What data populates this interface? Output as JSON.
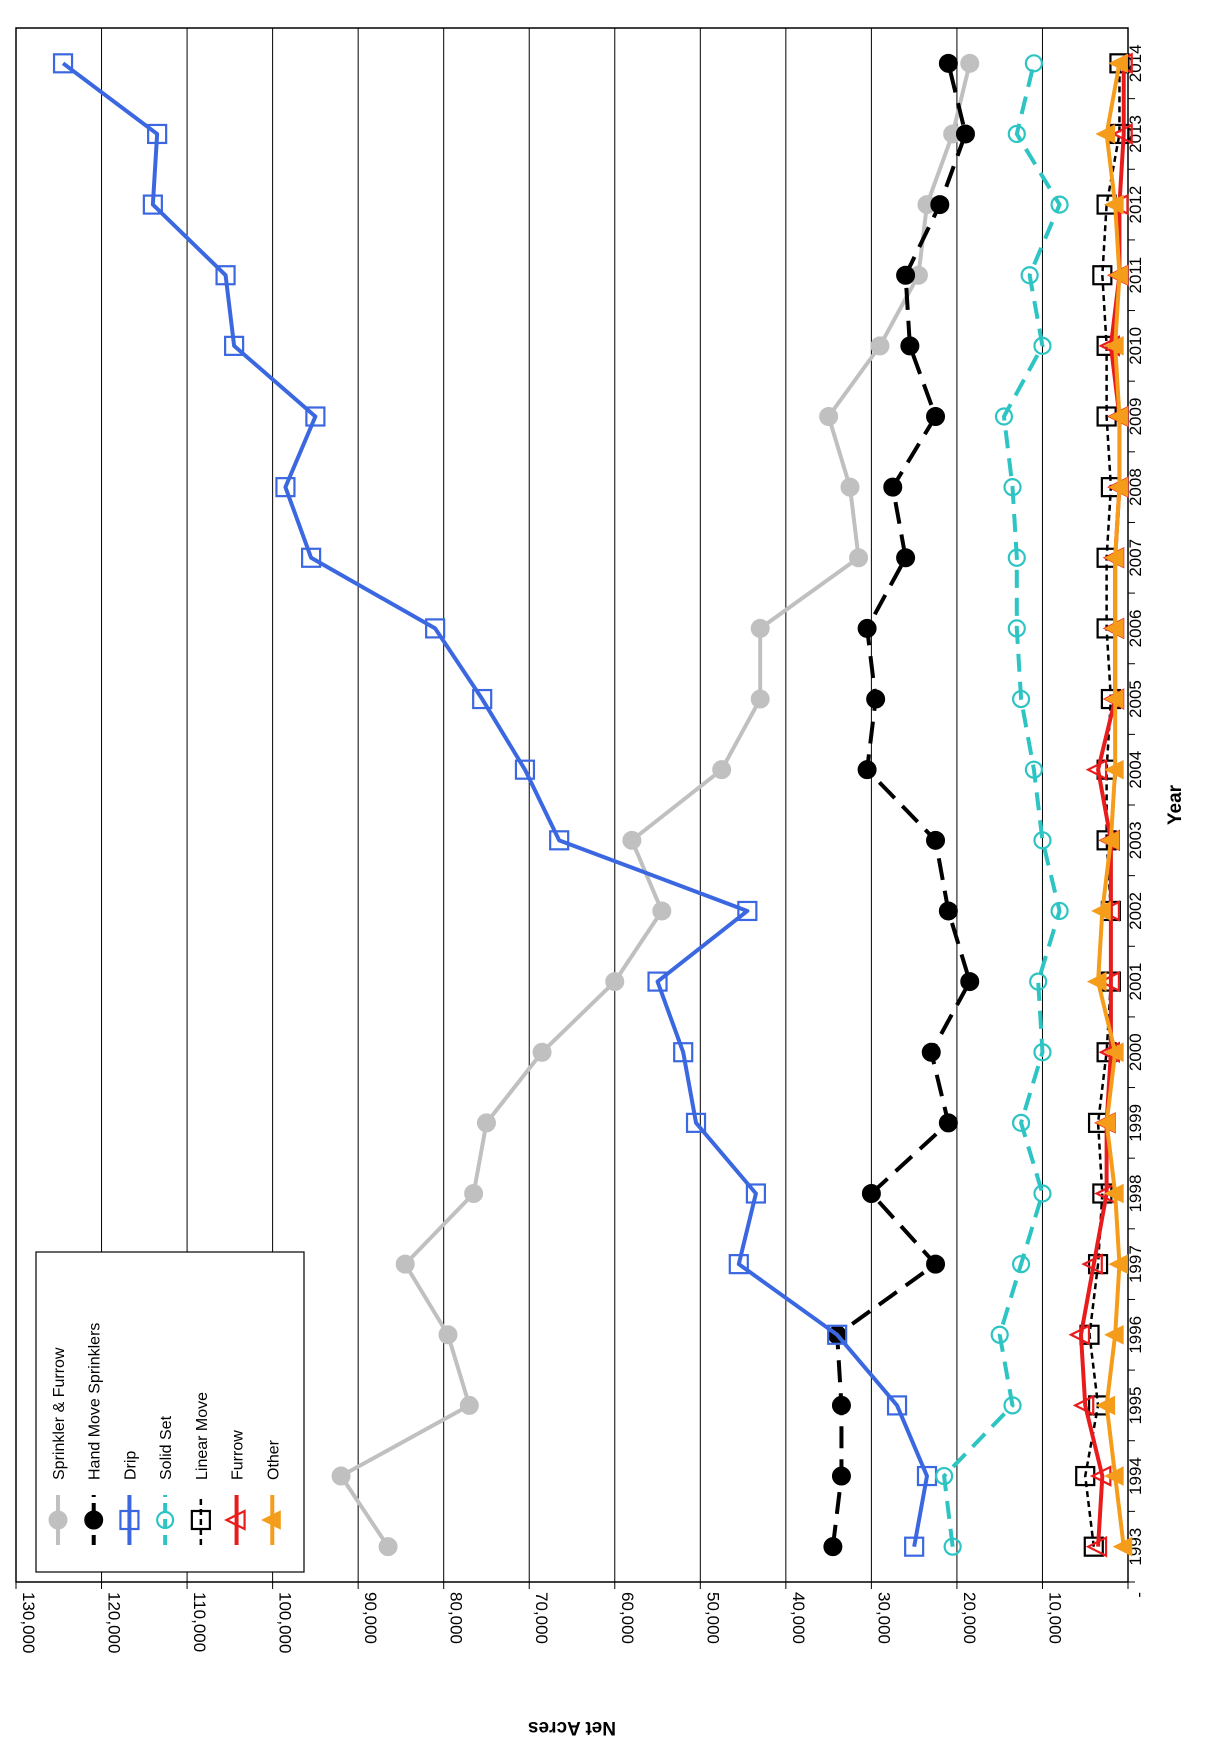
{
  "chart_data": {
    "type": "line",
    "xlabel": "Year",
    "ylabel": "Net Acres",
    "ylim": [
      0,
      130000
    ],
    "yticks": [
      0,
      10000,
      20000,
      30000,
      40000,
      50000,
      60000,
      70000,
      80000,
      90000,
      100000,
      110000,
      120000,
      130000
    ],
    "ytick_labels": [
      "-",
      "10,000",
      "20,000",
      "30,000",
      "40,000",
      "50,000",
      "60,000",
      "70,000",
      "80,000",
      "90,000",
      "100,000",
      "110,000",
      "120,000",
      "130,000"
    ],
    "grid": true,
    "legend_position": "bottom-left",
    "categories": [
      "1993",
      "1994",
      "1995",
      "1996",
      "1997",
      "1998",
      "1999",
      "2000",
      "2001",
      "2002",
      "2003",
      "2004",
      "2005",
      "2006",
      "2007",
      "2008",
      "2009",
      "2010",
      "2011",
      "2012",
      "2013",
      "2014"
    ],
    "series": [
      {
        "name": "Sprinkler & Furrow",
        "color": "#c0c0c0",
        "marker": "filled-circle",
        "line": "solid",
        "values": [
          86500,
          92000,
          77000,
          79500,
          84500,
          76500,
          75000,
          68500,
          60000,
          54500,
          58000,
          47500,
          43000,
          43000,
          31500,
          32500,
          35000,
          29000,
          24500,
          23500,
          20500,
          18500
        ]
      },
      {
        "name": "Hand Move Sprinklers",
        "color": "#000000",
        "marker": "filled-circle",
        "line": "long-dash",
        "values": [
          34500,
          33500,
          33500,
          34000,
          22500,
          30000,
          21000,
          23000,
          18500,
          21000,
          22500,
          30500,
          29500,
          30500,
          26000,
          27500,
          22500,
          25500,
          26000,
          22000,
          19000,
          21000
        ]
      },
      {
        "name": "Drip",
        "color": "#3b68e0",
        "marker": "open-square",
        "line": "solid",
        "values": [
          25000,
          23500,
          27000,
          34000,
          45500,
          43500,
          50500,
          52000,
          55000,
          44500,
          66500,
          70500,
          75500,
          81000,
          95500,
          98500,
          95000,
          104500,
          105500,
          114000,
          113500,
          124500
        ]
      },
      {
        "name": "Solid Set",
        "color": "#2ec4c4",
        "marker": "open-circle",
        "line": "dash",
        "values": [
          20500,
          21500,
          13500,
          15000,
          12500,
          10000,
          12500,
          10000,
          10500,
          8000,
          10000,
          11000,
          12500,
          13000,
          13000,
          13500,
          14500,
          10000,
          11500,
          8000,
          13000,
          11000
        ]
      },
      {
        "name": "Linear Move",
        "color": "#000000",
        "marker": "open-square",
        "line": "short-dash",
        "values": [
          4000,
          5000,
          3500,
          4500,
          3500,
          3000,
          3500,
          2500,
          2000,
          2000,
          2500,
          2500,
          2000,
          2500,
          2500,
          2000,
          2500,
          2500,
          3000,
          2500,
          1000,
          1000
        ]
      },
      {
        "name": "Furrow",
        "color": "#e81c1c",
        "marker": "open-triangle",
        "line": "solid",
        "values": [
          3500,
          3000,
          5000,
          5500,
          4000,
          2500,
          2500,
          2000,
          2000,
          2000,
          2000,
          3500,
          1500,
          1500,
          1500,
          1000,
          1000,
          2000,
          1000,
          1000,
          500,
          500
        ]
      },
      {
        "name": "Other",
        "color": "#f59c1a",
        "marker": "filled-triangle",
        "line": "solid",
        "values": [
          500,
          1500,
          2500,
          1500,
          1000,
          1500,
          2500,
          1500,
          3500,
          3000,
          2000,
          1500,
          1500,
          1500,
          1500,
          1000,
          1000,
          1500,
          1000,
          1500,
          2500,
          1000
        ]
      }
    ]
  }
}
